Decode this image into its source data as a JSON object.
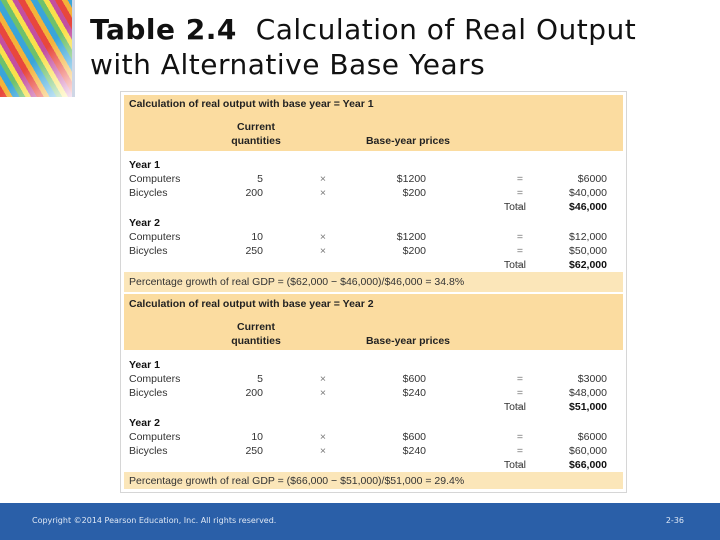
{
  "slide": {
    "title_number": "Table 2.4",
    "title_text_line1": "Calculation of Real Output",
    "title_text_line2": "with Alternative Base Years"
  },
  "table": {
    "symbols": {
      "times": "×",
      "equals": "=",
      "total": "Total"
    },
    "sections": [
      {
        "heading": "Calculation of real output with base year = Year 1",
        "col_qty_line1": "Current",
        "col_qty_line2": "quantities",
        "col_price": "Base-year prices",
        "years": [
          {
            "year_label": "Year 1",
            "rows": [
              {
                "item": "Computers",
                "qty": "5",
                "price": "$1200",
                "value": "$6000"
              },
              {
                "item": "Bicycles",
                "qty": "200",
                "price": "$200",
                "value": "$40,000"
              }
            ],
            "total": "$46,000"
          },
          {
            "year_label": "Year 2",
            "rows": [
              {
                "item": "Computers",
                "qty": "10",
                "price": "$1200",
                "value": "$12,000"
              },
              {
                "item": "Bicycles",
                "qty": "250",
                "price": "$200",
                "value": "$50,000"
              }
            ],
            "total": "$62,000"
          }
        ],
        "growth": "Percentage growth of real GDP = ($62,000 − $46,000)/$46,000 = 34.8%"
      },
      {
        "heading": "Calculation of real output with base year = Year 2",
        "col_qty_line1": "Current",
        "col_qty_line2": "quantities",
        "col_price": "Base-year prices",
        "years": [
          {
            "year_label": "Year 1",
            "rows": [
              {
                "item": "Computers",
                "qty": "5",
                "price": "$600",
                "value": "$3000"
              },
              {
                "item": "Bicycles",
                "qty": "200",
                "price": "$240",
                "value": "$48,000"
              }
            ],
            "total": "$51,000"
          },
          {
            "year_label": "Year 2",
            "rows": [
              {
                "item": "Computers",
                "qty": "10",
                "price": "$600",
                "value": "$6000"
              },
              {
                "item": "Bicycles",
                "qty": "250",
                "price": "$240",
                "value": "$60,000"
              }
            ],
            "total": "$66,000"
          }
        ],
        "growth": "Percentage growth of real GDP = ($66,000 − $51,000)/$51,000 = 29.4%"
      }
    ]
  },
  "footer": {
    "copyright": "Copyright ©2014 Pearson Education, Inc. All rights reserved.",
    "page_number": "2-36"
  }
}
